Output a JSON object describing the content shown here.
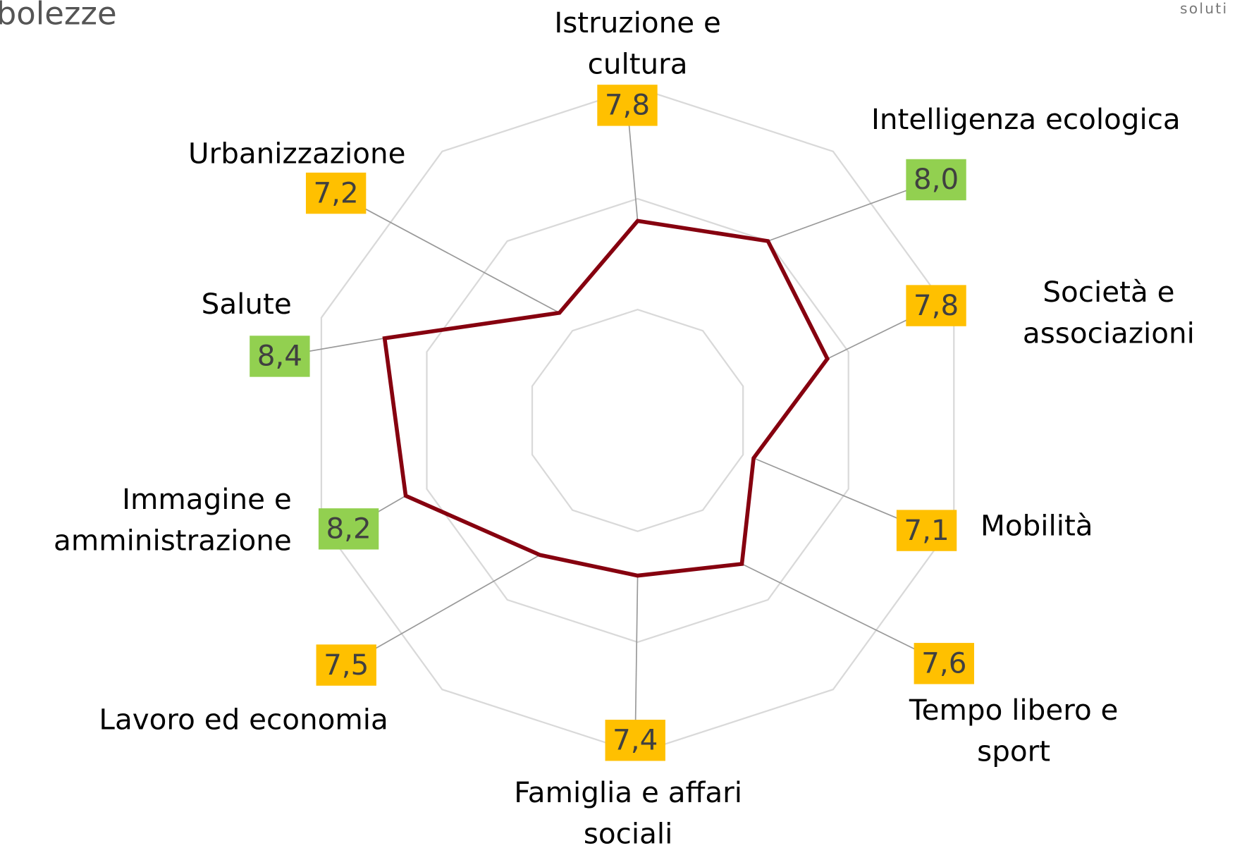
{
  "header": {
    "title_fragment": "bolezze",
    "logo_fragment": "soluti"
  },
  "chart_data": {
    "type": "radar",
    "categories": [
      "Istruzione e cultura",
      "Intelligenza ecologica",
      "Società e associazioni",
      "Mobilità",
      "Tempo libero e sport",
      "Famiglia e affari sociali",
      "Lavoro ed economia",
      "Immagine e amministrazione",
      "Salute",
      "Urbanizzazione"
    ],
    "series": [
      {
        "color": "#86000f",
        "values": [
          7.8,
          8.0,
          7.8,
          7.1,
          7.6,
          7.4,
          7.5,
          8.2,
          8.4,
          7.2
        ],
        "value_labels": [
          "7,8",
          "8,0",
          "7,8",
          "7,1",
          "7,6",
          "7,4",
          "7,5",
          "8,2",
          "8,4",
          "7,2"
        ],
        "value_label_colors": [
          "#ffc000",
          "#92d050",
          "#ffc000",
          "#ffc000",
          "#ffc000",
          "#ffc000",
          "#ffc000",
          "#92d050",
          "#92d050",
          "#ffc000"
        ]
      }
    ],
    "rlim": [
      6,
      9
    ],
    "rticks": [
      7,
      8,
      9
    ],
    "grid": true
  }
}
